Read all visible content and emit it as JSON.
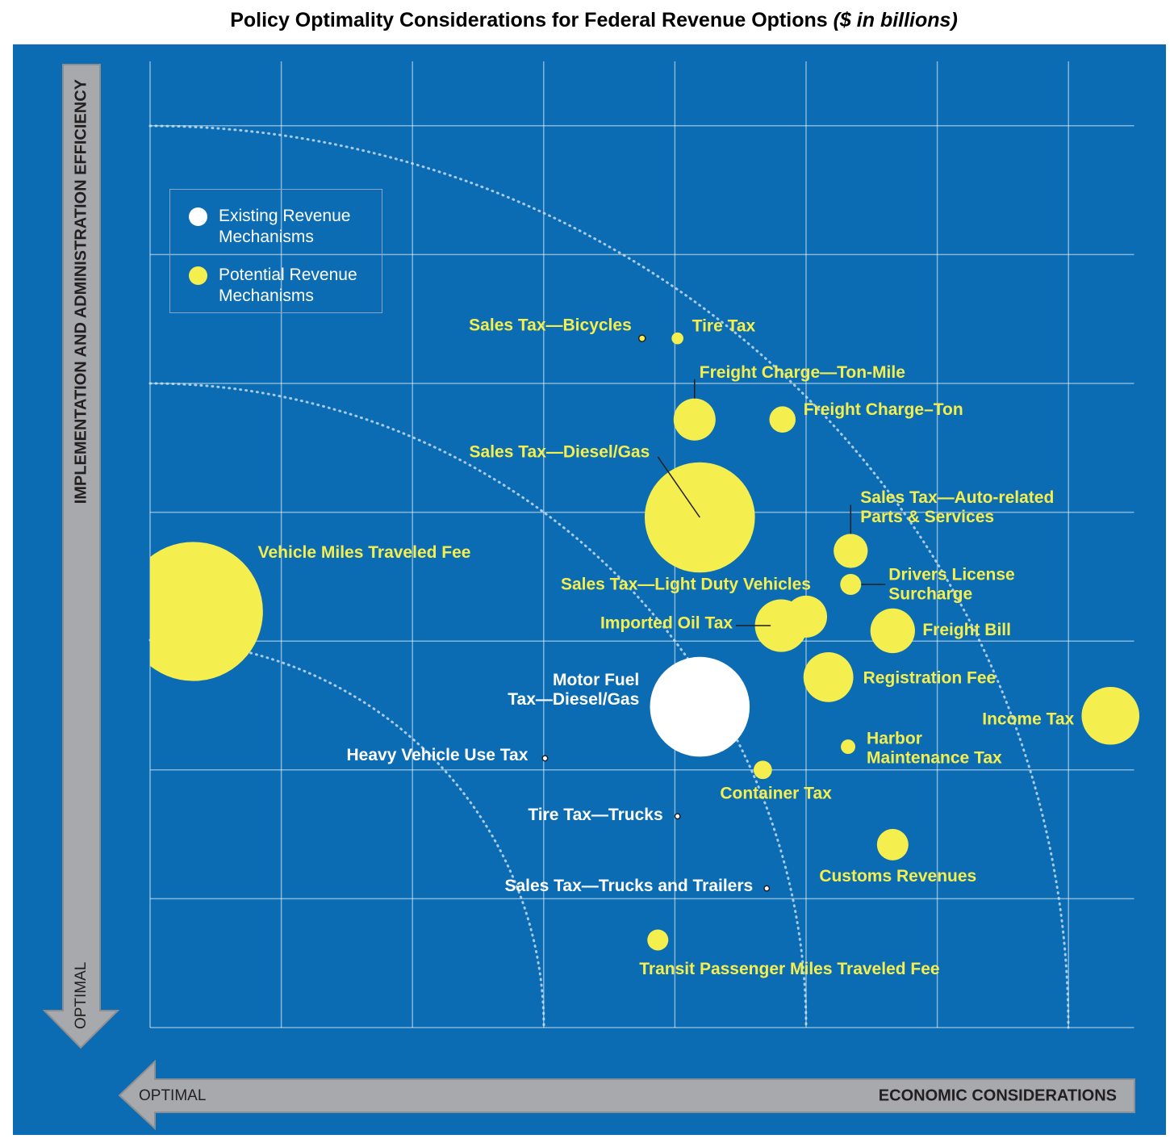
{
  "chart_data": {
    "type": "bubble",
    "title": "Policy Optimality Considerations for Federal Revenue Options",
    "title_note": "($ in billions)",
    "y_label": "IMPLEMENTATION AND ADMINISTRATION EFFICIENCY",
    "y_optimal": "OPTIMAL",
    "x_label": "ECONOMIC CONSIDERATIONS",
    "x_optimal": "OPTIMAL",
    "xlim": [
      0,
      7.5
    ],
    "ylim": [
      0,
      7.5
    ],
    "xticks": [
      0,
      1,
      2,
      3,
      4,
      5,
      6,
      7
    ],
    "yticks": [
      0,
      1,
      2,
      3,
      4,
      5,
      6,
      7
    ],
    "grid": true,
    "legend": "upper left",
    "series": [
      {
        "name": "Existing Revenue Mechanisms",
        "color": "#ffffff",
        "label_color": "#ffffff",
        "points": [
          {
            "label": [
              "Motor Fuel",
              "Tax—Diesel/Gas"
            ],
            "x": 4.19,
            "y": 2.49,
            "size": 0.38
          },
          {
            "label": [
              "Heavy Vehicle Use Tax"
            ],
            "x": 3.01,
            "y": 2.09,
            "size": 0.02
          },
          {
            "label": [
              "Tire Tax—Trucks"
            ],
            "x": 4.02,
            "y": 1.64,
            "size": 0.02
          },
          {
            "label": [
              "Sales Tax—Trucks and Trailers"
            ],
            "x": 4.7,
            "y": 1.08,
            "size": 0.02
          }
        ]
      },
      {
        "name": "Potential Revenue Mechanisms",
        "color": "#f4ee4e",
        "label_color": "#f4ee4e",
        "points": [
          {
            "label": [
              "Sales Tax—Bicycles"
            ],
            "x": 3.75,
            "y": 5.35,
            "size": 0.025
          },
          {
            "label": [
              "Tire Tax"
            ],
            "x": 4.02,
            "y": 5.35,
            "size": 0.045
          },
          {
            "label": [
              "Freight Charge—Ton-Mile"
            ],
            "x": 4.15,
            "y": 4.72,
            "size": 0.16
          },
          {
            "label": [
              "Freight Charge–Ton"
            ],
            "x": 4.82,
            "y": 4.72,
            "size": 0.1
          },
          {
            "label": [
              "Sales Tax—Diesel/Gas"
            ],
            "x": 4.19,
            "y": 3.96,
            "size": 0.42
          },
          {
            "label": [
              "Sales Tax—Auto-related",
              "Parts & Services"
            ],
            "x": 5.34,
            "y": 3.7,
            "size": 0.13
          },
          {
            "label": [
              "Drivers License",
              "Surcharge"
            ],
            "x": 5.34,
            "y": 3.44,
            "size": 0.08
          },
          {
            "label": [
              "Vehicle Miles Traveled Fee"
            ],
            "x": 0.33,
            "y": 3.23,
            "size": 0.53
          },
          {
            "label": [
              "Sales Tax—Light Duty Vehicles"
            ],
            "x": 5.0,
            "y": 3.19,
            "size": 0.16
          },
          {
            "label": [
              "Imported Oil Tax"
            ],
            "x": 4.81,
            "y": 3.12,
            "size": 0.2
          },
          {
            "label": [
              "Freight Bill"
            ],
            "x": 5.66,
            "y": 3.08,
            "size": 0.17
          },
          {
            "label": [
              "Registration Fee"
            ],
            "x": 5.17,
            "y": 2.72,
            "size": 0.19
          },
          {
            "label": [
              "Income Tax"
            ],
            "x": 7.32,
            "y": 2.42,
            "size": 0.22
          },
          {
            "label": [
              "Harbor",
              "Maintenance Tax"
            ],
            "x": 5.32,
            "y": 2.18,
            "size": 0.055
          },
          {
            "label": [
              "Container Tax"
            ],
            "x": 4.67,
            "y": 2.0,
            "size": 0.07
          },
          {
            "label": [
              "Customs Revenues"
            ],
            "x": 5.66,
            "y": 1.42,
            "size": 0.12
          },
          {
            "label": [
              "Transit Passenger Miles Traveled Fee"
            ],
            "x": 3.87,
            "y": 0.68,
            "size": 0.08
          }
        ]
      }
    ]
  }
}
